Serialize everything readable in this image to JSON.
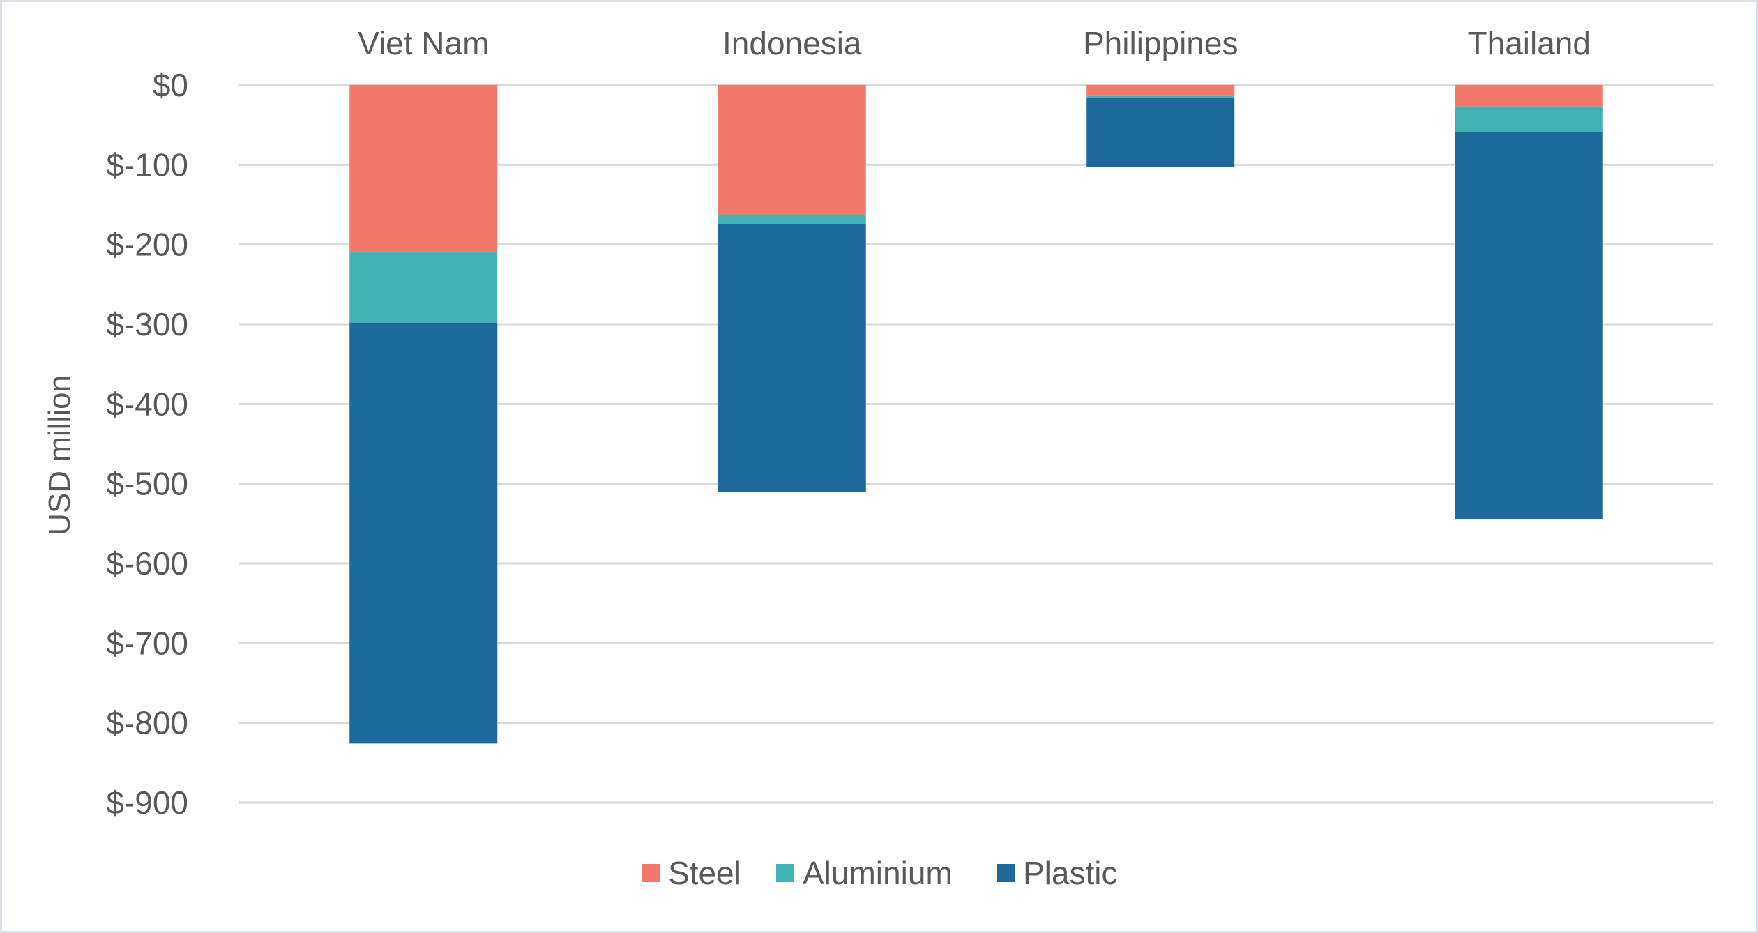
{
  "chart_data": {
    "type": "bar",
    "stacked": true,
    "title": "",
    "xlabel": "",
    "ylabel": "USD million",
    "ylim": [
      -900,
      0
    ],
    "yticks": [
      0,
      -100,
      -200,
      -300,
      -400,
      -500,
      -600,
      -700,
      -800,
      -900
    ],
    "ytick_labels": [
      "$0",
      "$-100",
      "$-200",
      "$-300",
      "$-400",
      "$-500",
      "$-600",
      "$-700",
      "$-800",
      "$-900"
    ],
    "categories": [
      "Viet Nam",
      "Indonesia",
      "Philippines",
      "Thailand"
    ],
    "category_axis_position": "top",
    "grid": true,
    "legend_position": "bottom",
    "series": [
      {
        "name": "Steel",
        "color": "#f2786a",
        "values": [
          -210,
          -163,
          -13,
          -27
        ]
      },
      {
        "name": "Aluminium",
        "color": "#41b2b5",
        "values": [
          -88,
          -11,
          -3,
          -32
        ]
      },
      {
        "name": "Plastic",
        "color": "#1b6a99",
        "values": [
          -528,
          -336,
          -87,
          -486
        ]
      }
    ]
  }
}
